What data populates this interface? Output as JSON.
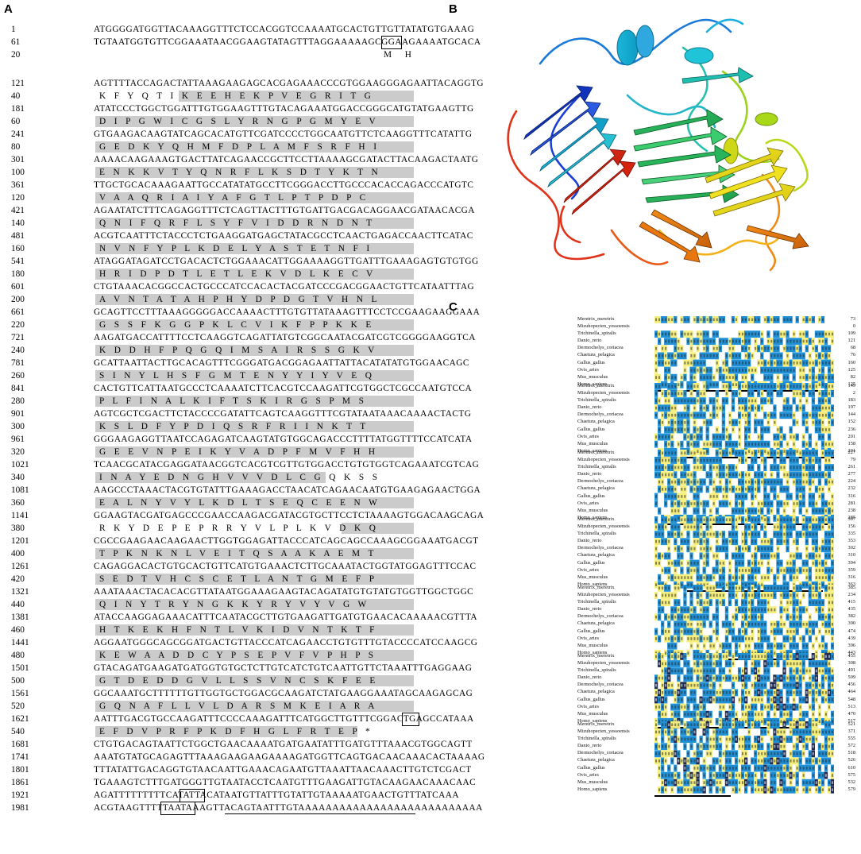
{
  "panels": {
    "a": "A",
    "b": "B",
    "c": "C"
  },
  "colors": {
    "aa_highlight": "#cbcbcb",
    "align_blue": "#1f8fd6",
    "align_yellow": "#f5ee7a",
    "align_dark": "#1e2a50"
  },
  "sequence_rows": [
    {
      "num": "1",
      "seq": "ATGGGGATGGTTACAAAGGTTTCTCCACGGTCCAAAATGCACTGTTGTTATATGTGAAAG",
      "type": "nt"
    },
    {
      "num": "61",
      "seq": "TGTAATGGTGTTCGGAAATAACGGAAGTATAGTTTAGGAAAAAGCGGAAGAAAATGCACA",
      "type": "nt"
    },
    {
      "num": "20",
      "seq": "M  H",
      "type": "aa0"
    },
    {
      "num": "121",
      "seq": "AGTTTTACCAGACTATTAAAGAAGAGCACGAGAAACCCGTGGAAGGGAGAATTACAGGTG",
      "type": "nt"
    },
    {
      "num": "40",
      "seq": "K F Y Q T I K E E H E K P V E G R I T G",
      "type": "aa"
    },
    {
      "num": "181",
      "seq": "ATATCCCTGGCTGGATTTGTGGAAGTTTGTACAGAAATGGACCGGGCATGTATGAAGTTG",
      "type": "nt"
    },
    {
      "num": "60",
      "seq": "D I P G W I C G S L Y R N G P G M Y E V",
      "type": "aa"
    },
    {
      "num": "241",
      "seq": "GTGAAGACAAGTATCAGCACATGTTCGATCCCCTGGCAATGTTCTCAAGGTTTCATATTG",
      "type": "nt"
    },
    {
      "num": "80",
      "seq": "G E D K Y Q H M F D P L A M F S R F H I",
      "type": "aa"
    },
    {
      "num": "301",
      "seq": "AAAACAAGAAAGTGACTTATCAGAACCGCTTCCTTAAAAGCGATACTTACAAGACTAATG",
      "type": "nt"
    },
    {
      "num": "100",
      "seq": "E N K K V T Y Q N R F L K S D T Y K T N",
      "type": "aa"
    },
    {
      "num": "361",
      "seq": "TTGCTGCACAAAGAATTGCCATATATGCCTTCGGGACCTTGCCCACACCAGACCCATGTC",
      "type": "nt"
    },
    {
      "num": "120",
      "seq": "V A A Q R I A I Y A F G T L P T P D P C",
      "type": "aa"
    },
    {
      "num": "421",
      "seq": "AGAATATCTTTCAGAGGTTTCTCAGTTACTTTGTGATTGACGACAGGAACGATAACACGA",
      "type": "nt"
    },
    {
      "num": "140",
      "seq": "Q N I F Q R F L S Y F V I D D R N D N T",
      "type": "aa"
    },
    {
      "num": "481",
      "seq": "ACGTCAATTTCTACCCTCTGAAGGATGAGCTATACGCCTCAACTGAGACCAACTTCATAC",
      "type": "nt"
    },
    {
      "num": "160",
      "seq": "N V N F Y P L K D E L Y A S T E T N F I",
      "type": "aa"
    },
    {
      "num": "541",
      "seq": "ATAGGATAGATCCTGACACTCTGGAAACATTGGAAAAGGTTGATTTGAAAGAGTGTGTGG",
      "type": "nt"
    },
    {
      "num": "180",
      "seq": "H R I D P D T L E T L E K V D L K E C V",
      "type": "aa"
    },
    {
      "num": "601",
      "seq": "CTGTAAACACGGCCACTGCCCATCCACACTACGATCCCGACGGAACTGTTCATAATTTAG",
      "type": "nt"
    },
    {
      "num": "200",
      "seq": "A V N T A T A H P H Y D P D G T V H N L",
      "type": "aa"
    },
    {
      "num": "661",
      "seq": "GCAGTTCCTTTAAAGGGGGACCAAAACTTTGTGTTATAAAGTTTCCTCCGAAGAAGGAAA",
      "type": "nt"
    },
    {
      "num": "220",
      "seq": "G S S F K G G P K L C V I K F P P K K E",
      "type": "aa"
    },
    {
      "num": "721",
      "seq": "AAGATGACCATTTTCCTCAAGGTCAGATTATGTCGGCAATACGATCGTCGGGGAAGGTCA",
      "type": "nt"
    },
    {
      "num": "240",
      "seq": "K D D H F P Q G Q I M S A I R S S G K V",
      "type": "aa"
    },
    {
      "num": "781",
      "seq": "GCATTAATTACTTGCACAGTTTCGGGATGACGGAGAATTATTACATATATGTGGAACAGC",
      "type": "nt"
    },
    {
      "num": "260",
      "seq": "S I N Y L H S F G M T E N Y Y I Y V E Q",
      "type": "aa"
    },
    {
      "num": "841",
      "seq": "CACTGTTCATTAATGCCCTCAAAATCTTCACGTCCAAGATTCGTGGCTCGCCAATGTCCA",
      "type": "nt"
    },
    {
      "num": "280",
      "seq": "P L F I N A L K I F T S K I R G S P M S",
      "type": "aa"
    },
    {
      "num": "901",
      "seq": "AGTCGCTCGACTTCTACCCCGATATTCAGTCAAGGTTTCGTATAATAAACAAAACTACTG",
      "type": "nt"
    },
    {
      "num": "300",
      "seq": "K S L D F Y P D I Q S R F R I I N K T T",
      "type": "aa"
    },
    {
      "num": "961",
      "seq": "GGGAAGAGGTTAATCCAGAGATCAAGTATGTGGCAGACCCTTTTATGGTTTTCCATCATA",
      "type": "nt"
    },
    {
      "num": "320",
      "seq": "G E E V N P E I K Y V A D P F M V F H H",
      "type": "aa"
    },
    {
      "num": "1021",
      "seq": "TCAACGCATACGAGGATAACGGTCACGTCGTTGTGGACCTGTGTGGTCAGAAATCGTCAG",
      "type": "nt"
    },
    {
      "num": "340",
      "seq": "I N A Y E D N G H V V V D L C G Q K S S",
      "type": "aa"
    },
    {
      "num": "1081",
      "seq": "AAGCCCTAAACTACGTGTATTTGAAAGACCTAACATCAGAACAATGTGAAGAGAACTGGA",
      "type": "nt"
    },
    {
      "num": "360",
      "seq": "E A L N Y V Y L K D L T S E Q C E E N W",
      "type": "aa"
    },
    {
      "num": "1141",
      "seq": "GGAAGTACGATGAGCCCGAACCAAGACGATACGTGCTTCCTCTAAAAGTGGACAAGCAGA",
      "type": "nt"
    },
    {
      "num": "380",
      "seq": "R K Y D E P E P R R Y V L P L K V D K Q",
      "type": "aa"
    },
    {
      "num": "1201",
      "seq": "CGCCGAAGAACAAGAACTTGGTGGAGATTACCCATCAGCAGCCAAAGCGGAAATGACGT",
      "type": "nt"
    },
    {
      "num": "400",
      "seq": "T P K N K N L V E I T Q S A A K A E M T",
      "type": "aa"
    },
    {
      "num": "1261",
      "seq": "CAGAGGACACTGTGCACTGTTCATGTGAAACTCTTGCAAATACTGGTATGGAGTTTCCAC",
      "type": "nt"
    },
    {
      "num": "420",
      "seq": "S E D T V H C S C E T L A N T G M E F P",
      "type": "aa"
    },
    {
      "num": "1321",
      "seq": "AAATAAACTACACACGTTATAATGGAAAGAAGTACAGATATGTGTATGTGGTTGGCTGGC",
      "type": "nt"
    },
    {
      "num": "440",
      "seq": "Q I N Y T R Y N G K K Y R Y V Y V G W",
      "type": "aa"
    },
    {
      "num": "1381",
      "seq": "ATACCAAGGAGAAACATTTCAATACGCTTGTGAAGATTGATGTGAACACAAAAACGTTTA",
      "type": "nt"
    },
    {
      "num": "460",
      "seq": "H T K E K H F N T L V K I D V N T K T F",
      "type": "aa"
    },
    {
      "num": "1441",
      "seq": "AGGAATGGGCAGCGGATGACTGTTACCCATCAGAACCTGTGTTTGTACCCCATCCAAGCG",
      "type": "nt"
    },
    {
      "num": "480",
      "seq": "K E W A A D D C Y P S E P V F V P H P S",
      "type": "aa"
    },
    {
      "num": "1501",
      "seq": "GTACAGATGAAGATGATGGTGTGCTCTTGTCATCTGTCAATTGTTCTAAATTTGAGGAAG",
      "type": "nt"
    },
    {
      "num": "500",
      "seq": "G T D E D D G V L L S S V N C S K F E E",
      "type": "aa"
    },
    {
      "num": "1561",
      "seq": "GGCAAATGCTTTTTTGTTGGTGCTGGACGCAAGATCTATGAAGGAAATAGCAAGAGCAG",
      "type": "nt"
    },
    {
      "num": "520",
      "seq": "G Q N A F L L V L D A R S M K E I A R A",
      "type": "aa"
    },
    {
      "num": "1621",
      "seq": "AATTTGACGTGCCAAGATTTCCCCAAAGATTTCATGGCTTGTTTCGGACTGAGCCATAAA",
      "type": "nt"
    },
    {
      "num": "540",
      "seq": "E F D V P R F P K D F H G L F R T E P *",
      "type": "aa"
    },
    {
      "num": "1681",
      "seq": "CTGTGACAGTAATTCTGGCTGAACAAAATGATGAATATTTGATGTTTAAACGTGGCAGTT",
      "type": "nt"
    },
    {
      "num": "1741",
      "seq": "AAATGTATGCAGAGTTTAAAGAAGAAGAAAAGATGGTTCAGTGACAACAAACACTAAAAG",
      "type": "nt"
    },
    {
      "num": "1801",
      "seq": "TTTATATTGACAGGTGTAACAATTGAAACAGAATGTTAAATTAACAAACTTGTCTCGACT",
      "type": "nt"
    },
    {
      "num": "1861",
      "seq": "TGAAAGTCTTTGATGGGTTGTAATACCTCAATGTTTGAAGATTGTACAAGAACAAACAAC",
      "type": "nt"
    },
    {
      "num": "1921",
      "seq": "AGATTTTTTTTTCATATTACATAATGTTATTTGTATTGTAAAAATGAACTGTTTATCAAA",
      "type": "nt"
    },
    {
      "num": "1981",
      "seq": "ACGTAAGTTTTTAATAAAGTTACAGTAATTTGTAAAAAAAAAAAAAAAAAAAAAAAAAAA",
      "type": "nt"
    }
  ],
  "alignment": {
    "species": [
      "Meretrix_meretrix",
      "Mizuhopecten_yessoensis",
      "Trichinella_spiralis",
      "Danio_rerio",
      "Dermochelys_coriacea",
      "Chaetura_pelagica",
      "Gallus_gallus",
      "Ovis_aries",
      "Mus_musculus",
      "Homo_sapiens"
    ],
    "blocks": [
      {
        "ends": [
          "73",
          "0",
          "109",
          "121",
          "68",
          "76",
          "160",
          "125",
          "82",
          "125"
        ]
      },
      {
        "ends": [
          "149",
          "2",
          "183",
          "197",
          "144",
          "152",
          "236",
          "201",
          "158",
          "201"
        ]
      },
      {
        "ends": [
          "227",
          "79",
          "261",
          "277",
          "224",
          "232",
          "316",
          "281",
          "238",
          "285"
        ]
      },
      {
        "ends": [
          "307",
          "156",
          "335",
          "353",
          "302",
          "310",
          "394",
          "359",
          "316",
          "363"
        ]
      },
      {
        "ends": [
          "385",
          "234",
          "415",
          "435",
          "382",
          "390",
          "474",
          "439",
          "396",
          "443"
        ]
      },
      {
        "ends": [
          "455",
          "308",
          "491",
          "509",
          "456",
          "464",
          "548",
          "513",
          "470",
          "517"
        ]
      },
      {
        "ends": [
          "521",
          "371",
          "555",
          "572",
          "518",
          "526",
          "610",
          "575",
          "532",
          "579"
        ]
      }
    ]
  }
}
